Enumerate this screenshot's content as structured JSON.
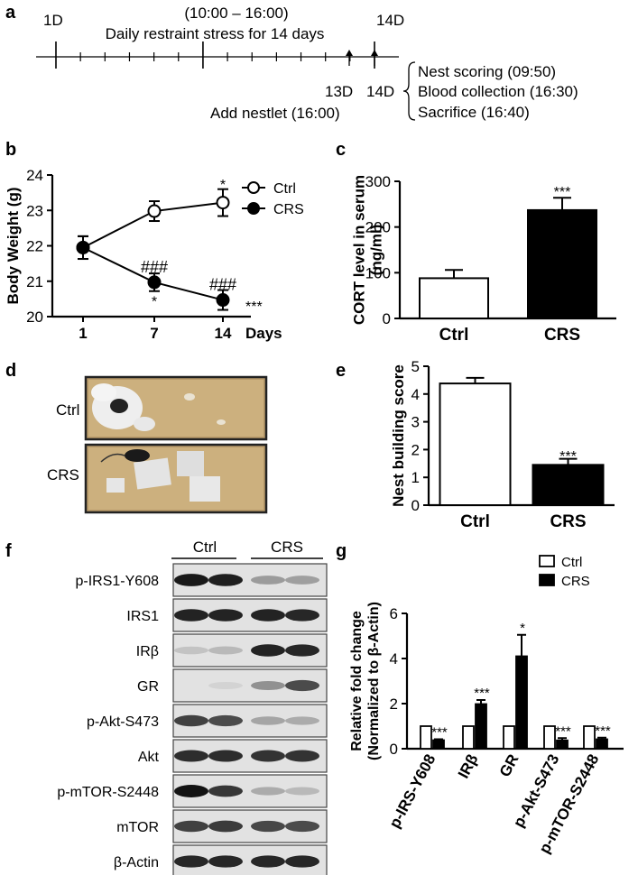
{
  "panels": {
    "a": {
      "label": "a",
      "day_start": "1D",
      "day_end": "14D",
      "time_window": "(10:00 – 16:00)",
      "stress_text": "Daily restraint stress for 14 days",
      "day13": "13D",
      "day14": "14D",
      "nestlet": "Add nestlet (16:00)",
      "events": [
        "Nest scoring (09:50)",
        "Blood collection (16:30)",
        "Sacrifice (16:40)"
      ]
    },
    "b": {
      "label": "b"
    },
    "c": {
      "label": "c"
    },
    "d": {
      "label": "d",
      "rows": [
        "Ctrl",
        "CRS"
      ]
    },
    "e": {
      "label": "e"
    },
    "f": {
      "label": "f",
      "groups": [
        "Ctrl",
        "CRS"
      ],
      "bands": [
        "p-IRS1-Y608",
        "IRS1",
        "IRβ",
        "GR",
        "p-Akt-S473",
        "Akt",
        "p-mTOR-S2448",
        "mTOR",
        "β-Actin"
      ],
      "intensity": [
        [
          0.95,
          0.92,
          0.3,
          0.28
        ],
        [
          0.9,
          0.9,
          0.9,
          0.88
        ],
        [
          0.1,
          0.15,
          0.9,
          0.88
        ],
        [
          0.0,
          0.02,
          0.35,
          0.7
        ],
        [
          0.75,
          0.7,
          0.25,
          0.22
        ],
        [
          0.85,
          0.85,
          0.82,
          0.82
        ],
        [
          0.98,
          0.8,
          0.22,
          0.15
        ],
        [
          0.75,
          0.78,
          0.72,
          0.7
        ],
        [
          0.88,
          0.88,
          0.88,
          0.88
        ]
      ]
    },
    "g": {
      "label": "g"
    }
  },
  "chart_data": [
    {
      "id": "b",
      "type": "line",
      "x": [
        1,
        7,
        14
      ],
      "xticks": [
        "1",
        "7",
        "14"
      ],
      "xlabel": "Days",
      "ylabel": "Body Weight (g)",
      "ylim": [
        20,
        24
      ],
      "yticks": [
        20,
        21,
        22,
        23,
        24
      ],
      "series": [
        {
          "name": "Ctrl",
          "values": [
            21.95,
            22.98,
            23.22
          ],
          "errors": [
            0.32,
            0.28,
            0.38
          ],
          "marker": "open"
        },
        {
          "name": "CRS",
          "values": [
            21.95,
            20.97,
            20.47
          ],
          "errors": [
            0.32,
            0.25,
            0.28
          ],
          "marker": "filled"
        }
      ],
      "annotations": [
        {
          "text": "*",
          "x": 14,
          "y": 23.75
        },
        {
          "text": "###",
          "x": 7,
          "y": 21.4
        },
        {
          "text": "*",
          "x": 7,
          "y": 20.45
        },
        {
          "text": "###",
          "x": 14,
          "y": 20.9
        },
        {
          "text": "***",
          "x": 16.5,
          "y": 20.3
        }
      ],
      "legend": "top-right"
    },
    {
      "id": "c",
      "type": "bar",
      "categories": [
        "Ctrl",
        "CRS"
      ],
      "values": [
        88,
        237
      ],
      "errors": [
        18,
        27
      ],
      "fills": [
        "#ffffff",
        "#000000"
      ],
      "ylabel": "CORT level in serum\n(ng/ml)",
      "ylim": [
        0,
        300
      ],
      "yticks": [
        0,
        100,
        200,
        300
      ],
      "annotations": [
        {
          "text": "***",
          "category": "CRS",
          "y": 282
        }
      ]
    },
    {
      "id": "e",
      "type": "bar",
      "categories": [
        "Ctrl",
        "CRS"
      ],
      "values": [
        4.38,
        1.45
      ],
      "errors": [
        0.2,
        0.22
      ],
      "fills": [
        "#ffffff",
        "#000000"
      ],
      "ylabel": "Nest building score",
      "ylim": [
        0,
        5
      ],
      "yticks": [
        0,
        1,
        2,
        3,
        4,
        5
      ],
      "annotations": [
        {
          "text": "***",
          "category": "CRS",
          "y": 1.85
        }
      ]
    },
    {
      "id": "g",
      "type": "bar",
      "categories": [
        "p-IRS-Y608",
        "IRβ",
        "GR",
        "p-Akt-S473",
        "p-mTOR-S2448"
      ],
      "series": [
        {
          "name": "Ctrl",
          "values": [
            1,
            1,
            1,
            1,
            1
          ],
          "errors": [
            0,
            0,
            0,
            0,
            0
          ],
          "fill": "#ffffff"
        },
        {
          "name": "CRS",
          "values": [
            0.38,
            1.98,
            4.1,
            0.37,
            0.42
          ],
          "errors": [
            0.04,
            0.18,
            0.95,
            0.1,
            0.07
          ],
          "fill": "#000000"
        }
      ],
      "ylabel": "Relative  fold change\n(Normalized to β-Actin)",
      "ylim": [
        0,
        6
      ],
      "yticks": [
        0,
        2,
        4,
        6
      ],
      "annotations": [
        "***",
        "***",
        "*",
        "***",
        "***"
      ],
      "legend": "top-right"
    }
  ]
}
